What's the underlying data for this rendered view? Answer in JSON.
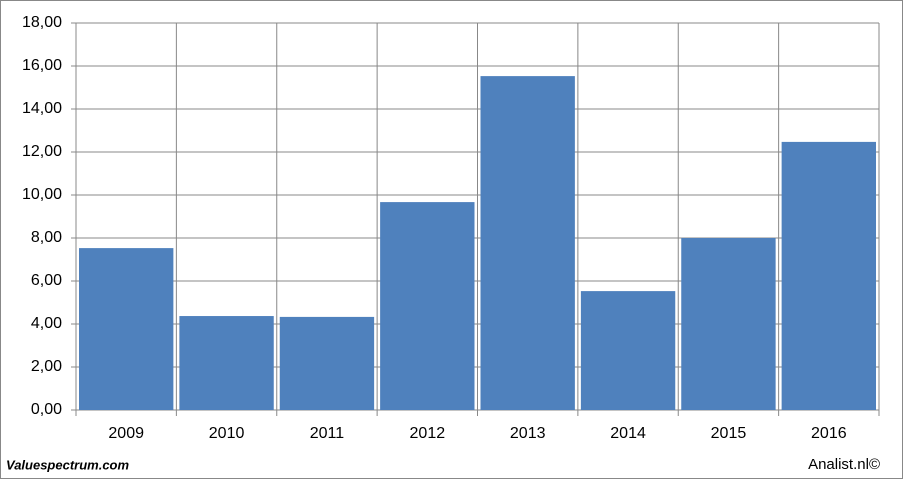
{
  "chart_data": {
    "type": "bar",
    "categories": [
      "2009",
      "2010",
      "2011",
      "2012",
      "2013",
      "2014",
      "2015",
      "2016"
    ],
    "values": [
      7.53,
      4.37,
      4.33,
      9.67,
      15.53,
      5.53,
      8.0,
      12.47
    ],
    "color": "#4f81bd",
    "ylim": [
      0,
      18
    ],
    "yticks": [
      {
        "value": 0,
        "label": "0,00"
      },
      {
        "value": 2,
        "label": "2,00"
      },
      {
        "value": 4,
        "label": "4,00"
      },
      {
        "value": 6,
        "label": "6,00"
      },
      {
        "value": 8,
        "label": "8,00"
      },
      {
        "value": 10,
        "label": "10,00"
      },
      {
        "value": 12,
        "label": "12,00"
      },
      {
        "value": 14,
        "label": "14,00"
      },
      {
        "value": 16,
        "label": "16,00"
      },
      {
        "value": 18,
        "label": "18,00"
      }
    ],
    "grid": true,
    "source_left": "Valuespectrum.com",
    "source_right": "Analist.nl©"
  }
}
